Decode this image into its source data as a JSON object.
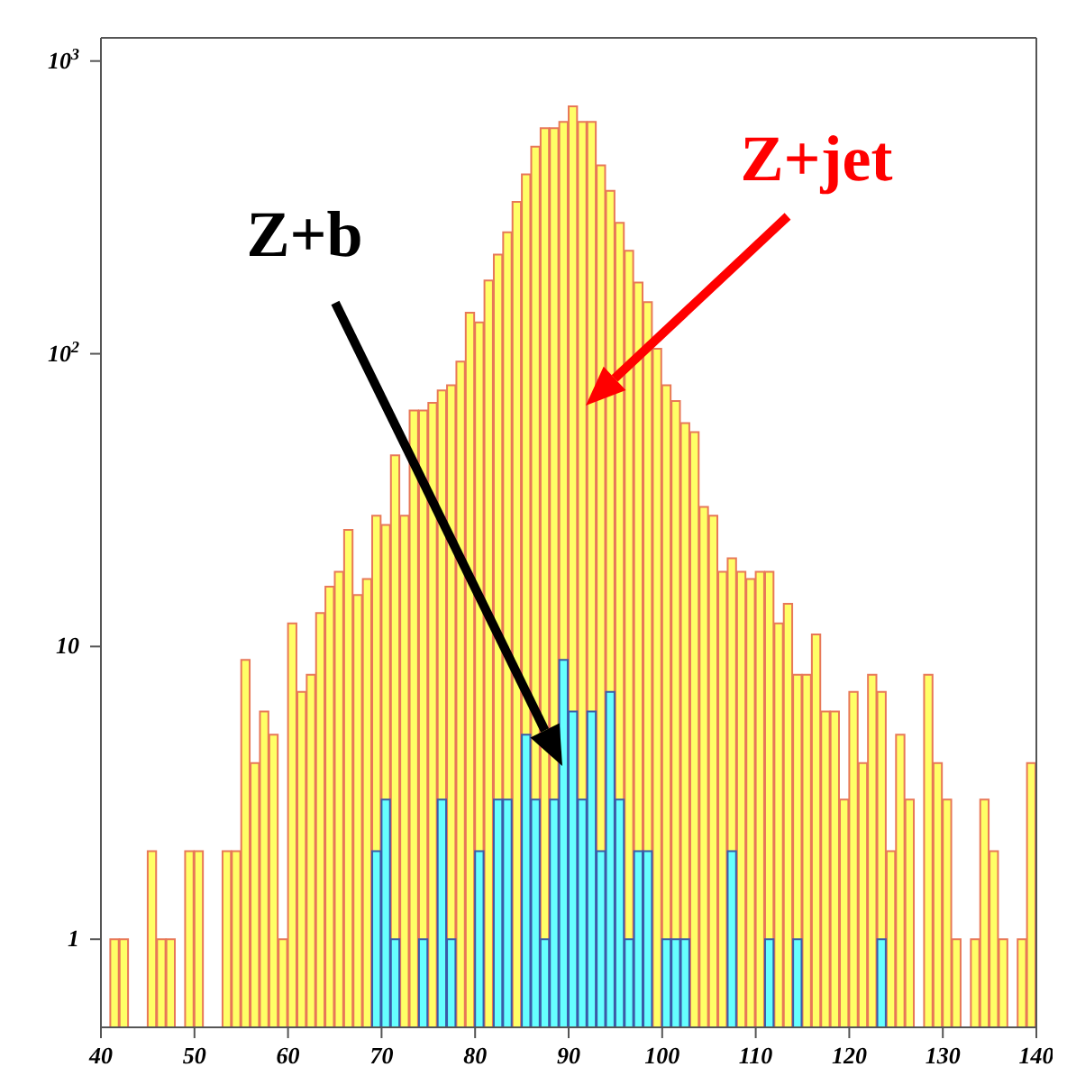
{
  "chart_data": {
    "type": "histogram",
    "bins": [
      40,
      41,
      42,
      43,
      44,
      45,
      46,
      47,
      48,
      49,
      50,
      51,
      52,
      53,
      54,
      55,
      56,
      57,
      58,
      59,
      60,
      61,
      62,
      63,
      64,
      65,
      66,
      67,
      68,
      69,
      70,
      71,
      72,
      73,
      74,
      75,
      76,
      77,
      78,
      79,
      80,
      81,
      82,
      83,
      84,
      85,
      86,
      87,
      88,
      89,
      90,
      91,
      92,
      93,
      94,
      95,
      96,
      97,
      98,
      99,
      100,
      101,
      102,
      103,
      104,
      105,
      106,
      107,
      108,
      109,
      110,
      111,
      112,
      113,
      114,
      115,
      116,
      117,
      118,
      119,
      120,
      121,
      122,
      123,
      124,
      125,
      126,
      127,
      128,
      129,
      130,
      131,
      132,
      133,
      134,
      135,
      136,
      137,
      138,
      139,
      140
    ],
    "series": [
      {
        "name": "Z+jet",
        "color": "#ffff66",
        "values": [
          null,
          1,
          1,
          null,
          null,
          2,
          1,
          1,
          null,
          2,
          2,
          null,
          null,
          2,
          2,
          9,
          4,
          6,
          5,
          1,
          12,
          7,
          8,
          13,
          16,
          18,
          25,
          15,
          17,
          28,
          26,
          45,
          28,
          64,
          64,
          68,
          75,
          78,
          94,
          138,
          128,
          178,
          218,
          260,
          330,
          410,
          510,
          590,
          590,
          620,
          700,
          620,
          620,
          440,
          360,
          280,
          225,
          175,
          150,
          104,
          78,
          69,
          58,
          54,
          30,
          28,
          18,
          20,
          18,
          17,
          18,
          18,
          12,
          14,
          8,
          8,
          11,
          6,
          6,
          3,
          7,
          4,
          8,
          7,
          2,
          5,
          3,
          null,
          8,
          4,
          3,
          1,
          null,
          1,
          3,
          2,
          1,
          null,
          1,
          4
        ]
      },
      {
        "name": "Z+b",
        "color": "#66ffff",
        "values": [
          null,
          null,
          null,
          null,
          null,
          null,
          null,
          null,
          null,
          null,
          null,
          null,
          null,
          null,
          null,
          null,
          null,
          null,
          null,
          null,
          null,
          null,
          null,
          null,
          null,
          null,
          null,
          null,
          null,
          2,
          3,
          1,
          null,
          null,
          1,
          null,
          3,
          1,
          null,
          null,
          2,
          null,
          3,
          3,
          null,
          5,
          3,
          1,
          3,
          9,
          6,
          3,
          6,
          2,
          7,
          3,
          1,
          2,
          2,
          null,
          1,
          1,
          1,
          null,
          null,
          null,
          null,
          2,
          null,
          null,
          null,
          1,
          null,
          null,
          1,
          null,
          null,
          null,
          null,
          null,
          null,
          null,
          null,
          1,
          null,
          null,
          null,
          null,
          null,
          null,
          null,
          null,
          null,
          null,
          null,
          null,
          null,
          null,
          null,
          null
        ]
      }
    ],
    "xlim": [
      40,
      140
    ],
    "xticks": [
      40,
      50,
      60,
      70,
      80,
      90,
      100,
      110,
      120,
      130,
      140
    ],
    "log": true,
    "ylim": [
      0.5,
      1200
    ],
    "yticks": [
      1,
      10,
      {
        "value": 100,
        "label": "10$^{2}$"
      },
      {
        "value": 1000,
        "label": "10$^{3}$"
      }
    ],
    "grid": false,
    "legend": false
  }
}
